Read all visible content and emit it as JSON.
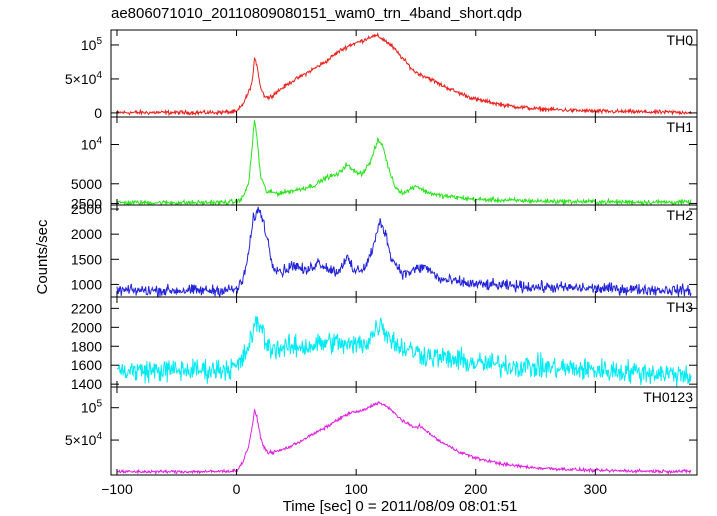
{
  "chart_data": {
    "type": "line",
    "title": "ae806071010_20110809080151_wam0_trn_4band_short.qdp",
    "xlabel": "Time [sec] 0 = 2011/08/09 08:01:51",
    "ylabel": "Counts/sec",
    "xlim": [
      -105,
      385
    ],
    "x_ticks": [
      {
        "value": -100,
        "label": "−100"
      },
      {
        "value": 0,
        "label": "0"
      },
      {
        "value": 100,
        "label": "100"
      },
      {
        "value": 200,
        "label": "200"
      },
      {
        "value": 300,
        "label": "300"
      }
    ],
    "grid": false,
    "panels": [
      {
        "name": "TH0",
        "color": "#e8221e",
        "ylim": [
          -6000,
          122000
        ],
        "y_ticks": [
          {
            "value": 0,
            "label": "0",
            "html": "0"
          },
          {
            "value": 50000,
            "label": "5×10^4",
            "base": "5×10",
            "exp": "4"
          },
          {
            "value": 100000,
            "label": "10^5",
            "base": "10",
            "exp": "5"
          }
        ],
        "noise": 1500,
        "points": [
          [
            -100,
            500
          ],
          [
            -20,
            600
          ],
          [
            0,
            1500
          ],
          [
            5,
            12000
          ],
          [
            10,
            30000
          ],
          [
            13,
            45000
          ],
          [
            15,
            78000
          ],
          [
            17,
            72000
          ],
          [
            20,
            38000
          ],
          [
            23,
            26000
          ],
          [
            27,
            22000
          ],
          [
            33,
            30000
          ],
          [
            45,
            45000
          ],
          [
            60,
            60000
          ],
          [
            75,
            76000
          ],
          [
            85,
            90000
          ],
          [
            95,
            100000
          ],
          [
            105,
            106000
          ],
          [
            113,
            113000
          ],
          [
            118,
            113000
          ],
          [
            123,
            108000
          ],
          [
            130,
            98000
          ],
          [
            140,
            78000
          ],
          [
            148,
            62000
          ],
          [
            153,
            57000
          ],
          [
            160,
            52000
          ],
          [
            170,
            42000
          ],
          [
            185,
            30000
          ],
          [
            200,
            20000
          ],
          [
            225,
            11000
          ],
          [
            250,
            6000
          ],
          [
            300,
            2500
          ],
          [
            350,
            1200
          ],
          [
            380,
            800
          ]
        ]
      },
      {
        "name": "TH1",
        "color": "#26e418",
        "ylim": [
          2300,
          13500
        ],
        "y_ticks": [
          {
            "value": 2500,
            "label": "2500"
          },
          {
            "value": 5000,
            "label": "5000"
          },
          {
            "value": 10000,
            "label": "10^4",
            "base": "10",
            "exp": "4"
          }
        ],
        "noise": 150,
        "points": [
          [
            -100,
            2600
          ],
          [
            -20,
            2600
          ],
          [
            0,
            2700
          ],
          [
            5,
            3200
          ],
          [
            10,
            5000
          ],
          [
            13,
            9500
          ],
          [
            15,
            13200
          ],
          [
            17,
            11000
          ],
          [
            20,
            6000
          ],
          [
            25,
            4000
          ],
          [
            35,
            3800
          ],
          [
            50,
            4200
          ],
          [
            65,
            4800
          ],
          [
            75,
            5800
          ],
          [
            85,
            6200
          ],
          [
            92,
            7500
          ],
          [
            97,
            6700
          ],
          [
            105,
            6300
          ],
          [
            112,
            7800
          ],
          [
            118,
            10500
          ],
          [
            122,
            10000
          ],
          [
            127,
            7000
          ],
          [
            133,
            4500
          ],
          [
            140,
            3800
          ],
          [
            150,
            4800
          ],
          [
            158,
            4000
          ],
          [
            170,
            3500
          ],
          [
            200,
            3000
          ],
          [
            250,
            2800
          ],
          [
            300,
            2700
          ],
          [
            380,
            2650
          ]
        ]
      },
      {
        "name": "TH2",
        "color": "#2424d8",
        "ylim": [
          750,
          2580
        ],
        "y_ticks": [
          {
            "value": 1000,
            "label": "1000"
          },
          {
            "value": 1500,
            "label": "1500"
          },
          {
            "value": 2000,
            "label": "2000"
          },
          {
            "value": 2500,
            "label": "2500"
          }
        ],
        "noise": 55,
        "points": [
          [
            -100,
            880
          ],
          [
            -20,
            880
          ],
          [
            0,
            900
          ],
          [
            5,
            1050
          ],
          [
            10,
            1600
          ],
          [
            14,
            2300
          ],
          [
            17,
            2450
          ],
          [
            20,
            2450
          ],
          [
            24,
            2100
          ],
          [
            30,
            1400
          ],
          [
            38,
            1250
          ],
          [
            48,
            1400
          ],
          [
            58,
            1250
          ],
          [
            68,
            1450
          ],
          [
            78,
            1300
          ],
          [
            85,
            1250
          ],
          [
            92,
            1550
          ],
          [
            98,
            1250
          ],
          [
            108,
            1350
          ],
          [
            115,
            1800
          ],
          [
            120,
            2250
          ],
          [
            124,
            2050
          ],
          [
            130,
            1500
          ],
          [
            140,
            1200
          ],
          [
            150,
            1300
          ],
          [
            158,
            1350
          ],
          [
            170,
            1100
          ],
          [
            200,
            1000
          ],
          [
            250,
            950
          ],
          [
            300,
            920
          ],
          [
            380,
            880
          ]
        ]
      },
      {
        "name": "TH3",
        "color": "#00eaf2",
        "ylim": [
          1370,
          2320
        ],
        "y_ticks": [
          {
            "value": 1400,
            "label": "1400"
          },
          {
            "value": 1600,
            "label": "1600"
          },
          {
            "value": 1800,
            "label": "1800"
          },
          {
            "value": 2000,
            "label": "2000"
          },
          {
            "value": 2200,
            "label": "2200"
          }
        ],
        "noise": 60,
        "points": [
          [
            -100,
            1540
          ],
          [
            -20,
            1550
          ],
          [
            0,
            1580
          ],
          [
            5,
            1650
          ],
          [
            10,
            1800
          ],
          [
            15,
            2000
          ],
          [
            20,
            2050
          ],
          [
            25,
            1800
          ],
          [
            35,
            1780
          ],
          [
            60,
            1800
          ],
          [
            80,
            1850
          ],
          [
            95,
            1800
          ],
          [
            110,
            1850
          ],
          [
            120,
            2050
          ],
          [
            125,
            1950
          ],
          [
            135,
            1800
          ],
          [
            160,
            1700
          ],
          [
            200,
            1620
          ],
          [
            250,
            1580
          ],
          [
            300,
            1550
          ],
          [
            380,
            1500
          ]
        ]
      },
      {
        "name": "TH0123",
        "color": "#e020e0",
        "ylim": [
          -4000,
          132000
        ],
        "y_ticks": [
          {
            "value": 50000,
            "label": "5×10^4",
            "base": "5×10",
            "exp": "4"
          },
          {
            "value": 100000,
            "label": "10^5",
            "base": "10",
            "exp": "5"
          }
        ],
        "noise": 1200,
        "points": [
          [
            -100,
            1000
          ],
          [
            -20,
            1200
          ],
          [
            0,
            2500
          ],
          [
            5,
            15000
          ],
          [
            10,
            40000
          ],
          [
            13,
            70000
          ],
          [
            15,
            95000
          ],
          [
            17,
            85000
          ],
          [
            20,
            55000
          ],
          [
            23,
            38000
          ],
          [
            27,
            30000
          ],
          [
            35,
            33000
          ],
          [
            45,
            40000
          ],
          [
            60,
            55000
          ],
          [
            75,
            70000
          ],
          [
            85,
            82000
          ],
          [
            95,
            92000
          ],
          [
            105,
            95000
          ],
          [
            113,
            103000
          ],
          [
            118,
            108000
          ],
          [
            123,
            105000
          ],
          [
            130,
            95000
          ],
          [
            140,
            78000
          ],
          [
            148,
            70000
          ],
          [
            153,
            72000
          ],
          [
            160,
            62000
          ],
          [
            170,
            48000
          ],
          [
            185,
            33000
          ],
          [
            200,
            22000
          ],
          [
            225,
            12000
          ],
          [
            250,
            7000
          ],
          [
            300,
            3000
          ],
          [
            350,
            1800
          ],
          [
            380,
            1500
          ]
        ]
      }
    ]
  }
}
